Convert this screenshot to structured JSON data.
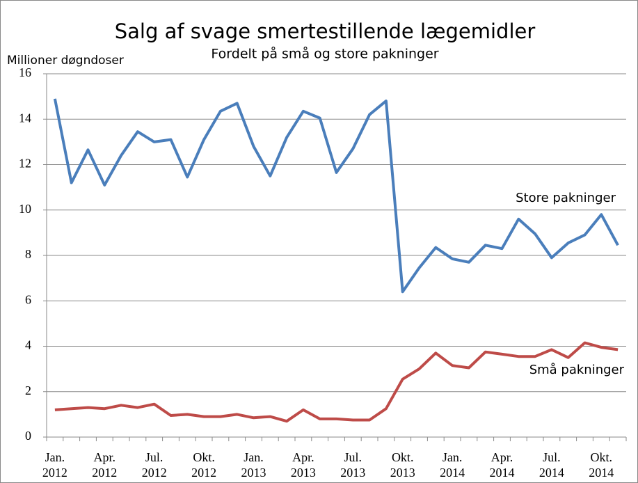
{
  "chart_data": {
    "type": "line",
    "title": "Salg af svage smertestillende lægemidler",
    "subtitle": "Fordelt på små og store pakninger",
    "y_label": "Millioner døgndoser",
    "categories": [
      "Jan. 2012",
      null,
      null,
      "Apr. 2012",
      null,
      null,
      "Jul. 2012",
      null,
      null,
      "Okt. 2012",
      null,
      null,
      "Jan. 2013",
      null,
      null,
      "Apr. 2013",
      null,
      null,
      "Jul. 2013",
      null,
      null,
      "Okt. 2013",
      null,
      null,
      "Jan. 2014",
      null,
      null,
      "Apr. 2014",
      null,
      null,
      "Jul. 2014",
      null,
      null,
      "Okt. 2014",
      null
    ],
    "series": [
      {
        "name": "Store pakninger",
        "color": "#4a7ebb",
        "values": [
          14.9,
          11.2,
          12.65,
          11.1,
          12.4,
          13.45,
          13.0,
          13.1,
          11.45,
          13.1,
          14.35,
          14.7,
          12.8,
          11.5,
          13.2,
          14.35,
          14.05,
          11.65,
          12.7,
          14.2,
          14.8,
          6.4,
          7.45,
          8.35,
          7.85,
          7.7,
          8.45,
          8.3,
          9.6,
          8.95,
          7.9,
          8.55,
          8.9,
          9.8,
          8.45
        ]
      },
      {
        "name": "Små pakninger",
        "color": "#be4b48",
        "values": [
          1.2,
          1.25,
          1.3,
          1.25,
          1.4,
          1.3,
          1.45,
          0.95,
          1.0,
          0.9,
          0.9,
          1.0,
          0.85,
          0.9,
          0.7,
          1.2,
          0.8,
          0.8,
          0.75,
          0.75,
          1.25,
          2.55,
          3.0,
          3.7,
          3.15,
          3.05,
          3.75,
          3.65,
          3.55,
          3.55,
          3.85,
          3.5,
          4.15,
          3.95,
          3.85
        ]
      }
    ],
    "ylim": [
      0,
      16
    ],
    "yticks": [
      0,
      2,
      4,
      6,
      8,
      10,
      12,
      14,
      16
    ],
    "grid": true
  }
}
